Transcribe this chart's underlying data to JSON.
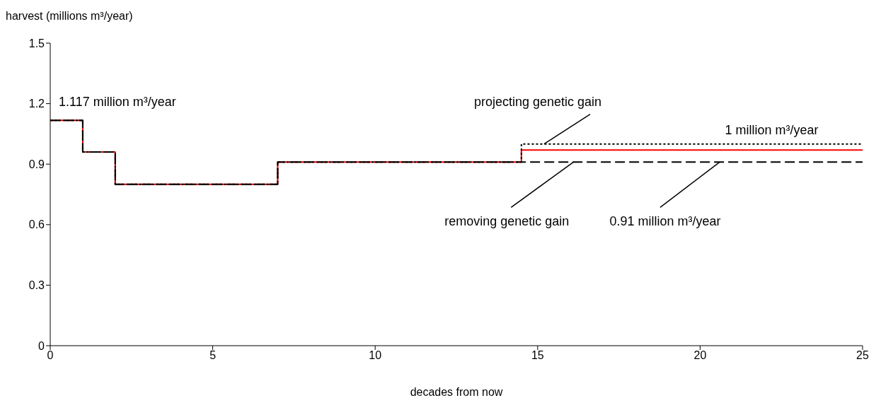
{
  "chart_data": {
    "type": "step",
    "xlabel": "decades from now",
    "ylabel": "harvest (millions m³/year)",
    "x": [
      0,
      1,
      2,
      7,
      14.5,
      25
    ],
    "series": [
      {
        "color": "#ff0000",
        "line_style": "solid",
        "values": [
          1.117,
          0.96,
          0.8,
          0.91,
          0.97,
          0.97
        ]
      },
      {
        "color": "#000000",
        "line_style": "dotted",
        "values": [
          1.117,
          0.96,
          0.8,
          0.91,
          1.0,
          1.0
        ]
      },
      {
        "color": "#000000",
        "line_style": "dashed",
        "values": [
          1.117,
          0.96,
          0.8,
          0.91,
          0.91,
          0.91
        ]
      }
    ],
    "xlim": [
      0,
      25
    ],
    "xticks": [
      0,
      5,
      10,
      15,
      20,
      25
    ],
    "ylim": [
      0,
      1.5
    ],
    "yticks": [
      0,
      0.3,
      0.6,
      0.9,
      1.2,
      1.5
    ],
    "grid": false,
    "legend": false,
    "marker": "none",
    "annotations": [
      {
        "text": "1.117 million m³/year",
        "x": 0,
        "y": 1.117
      },
      {
        "text": "projecting genetic gain",
        "x": 15.2,
        "y": 1.0
      },
      {
        "text": "1 million m³/year",
        "x": 22.2,
        "y": 1.0
      },
      {
        "text": "removing genetic gain",
        "x": 16.1,
        "y": 0.91
      },
      {
        "text": "0.91 million m³/year",
        "x": 20.6,
        "y": 0.91
      }
    ]
  }
}
